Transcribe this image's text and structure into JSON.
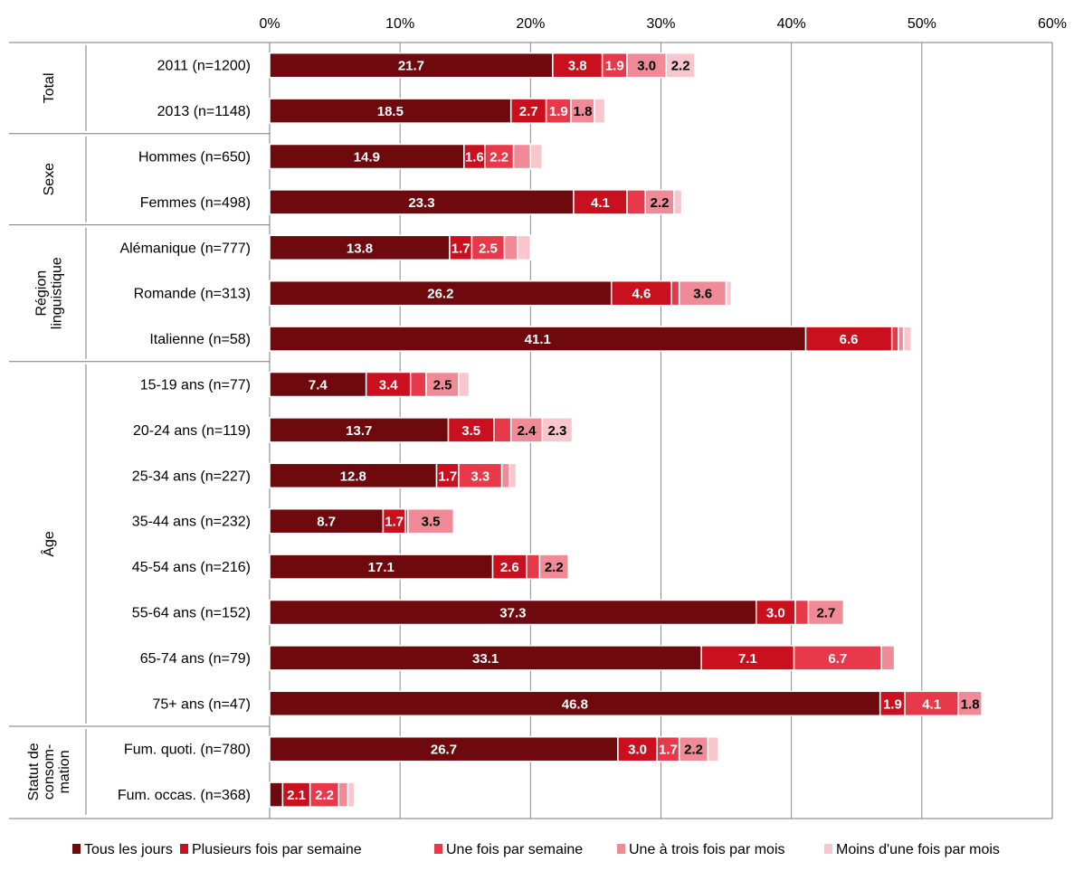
{
  "chart_data": {
    "type": "bar",
    "orientation": "horizontal",
    "stacked": true,
    "xlim": [
      0,
      60
    ],
    "x_ticks": [
      "0%",
      "10%",
      "20%",
      "30%",
      "40%",
      "50%",
      "60%"
    ],
    "grid": true,
    "legend_position": "bottom",
    "groups": [
      {
        "label": "Total",
        "rows": [
          0,
          1
        ]
      },
      {
        "label": "Sexe",
        "rows": [
          2,
          3
        ]
      },
      {
        "label": "Région linguistique",
        "rows": [
          4,
          5,
          6
        ]
      },
      {
        "label": "Âge",
        "rows": [
          7,
          8,
          9,
          10,
          11,
          12,
          13,
          14
        ]
      },
      {
        "label": "Statut de consom-mation",
        "rows": [
          15,
          16
        ]
      }
    ],
    "categories": [
      "2011 (n=1200)",
      "2013 (n=1148)",
      "Hommes (n=650)",
      "Femmes (n=498)",
      "Alémanique (n=777)",
      "Romande (n=313)",
      "Italienne (n=58)",
      "15-19 ans (n=77)",
      "20-24 ans (n=119)",
      "25-34 ans (n=227)",
      "35-44 ans (n=232)",
      "45-54 ans (n=216)",
      "55-64 ans (n=152)",
      "65-74 ans (n=79)",
      "75+ ans (n=47)",
      "Fum. quoti. (n=780)",
      "Fum. occas. (n=368)"
    ],
    "series": [
      {
        "name": "Tous les jours",
        "color": "#6e0a0e",
        "label_color": "#ffffff",
        "values": [
          21.7,
          18.5,
          14.9,
          23.3,
          13.8,
          26.2,
          41.1,
          7.4,
          13.7,
          12.8,
          8.7,
          17.1,
          37.3,
          33.1,
          46.8,
          26.7,
          1.0
        ],
        "labels": [
          "21.7",
          "18.5",
          "14.9",
          "23.3",
          "13.8",
          "26.2",
          "41.1",
          "7.4",
          "13.7",
          "12.8",
          "8.7",
          "17.1",
          "37.3",
          "33.1",
          "46.8",
          "26.7",
          ""
        ]
      },
      {
        "name": "Plusieurs fois par semaine",
        "color": "#c8101f",
        "label_color": "#ffffff",
        "values": [
          3.8,
          2.7,
          1.6,
          4.1,
          1.7,
          4.6,
          6.6,
          3.4,
          3.5,
          1.7,
          1.7,
          2.6,
          3.0,
          7.1,
          1.9,
          3.0,
          2.1
        ],
        "labels": [
          "3.8",
          "2.7",
          "1.6",
          "4.1",
          "1.7",
          "4.6",
          "6.6",
          "3.4",
          "3.5",
          "1.7",
          "1.7",
          "2.6",
          "3.0",
          "7.1",
          "1.9",
          "3.0",
          "2.1"
        ]
      },
      {
        "name": "Une fois par semaine",
        "color": "#e8394a",
        "label_color": "#ffffff",
        "values": [
          1.9,
          1.9,
          2.2,
          1.4,
          2.5,
          0.6,
          0.5,
          1.2,
          1.3,
          3.3,
          0.2,
          1.0,
          1.0,
          6.7,
          4.1,
          1.7,
          2.2
        ],
        "labels": [
          "1.9",
          "1.9",
          "2.2",
          "",
          "2.5",
          "",
          "",
          "",
          "",
          "3.3",
          "",
          "",
          "",
          "6.7",
          "4.1",
          "1.7",
          "2.2"
        ]
      },
      {
        "name": "Une à trois fois par mois",
        "color": "#f08a96",
        "label_color": "#000000",
        "values": [
          3.0,
          1.8,
          1.3,
          2.2,
          1.0,
          3.6,
          0.4,
          2.5,
          2.4,
          0.6,
          3.5,
          2.2,
          2.7,
          1.0,
          1.8,
          2.2,
          0.7
        ],
        "labels": [
          "3.0",
          "1.8",
          "",
          "2.2",
          "",
          "3.6",
          "",
          "2.5",
          "2.4",
          "",
          "3.5",
          "2.2",
          "2.7",
          "",
          "1.8",
          "2.2",
          ""
        ]
      },
      {
        "name": "Moins d'une fois par mois",
        "color": "#f8c6cc",
        "label_color": "#000000",
        "values": [
          2.2,
          0.8,
          0.9,
          0.6,
          1.0,
          0.4,
          0.6,
          0.8,
          2.3,
          0.5,
          0.0,
          0.0,
          0.0,
          0.0,
          0.0,
          0.8,
          0.5
        ],
        "labels": [
          "2.2",
          "",
          "",
          "",
          "",
          "",
          "",
          "",
          "2.3",
          "",
          "",
          "",
          "",
          "",
          "",
          "",
          ""
        ]
      }
    ]
  }
}
